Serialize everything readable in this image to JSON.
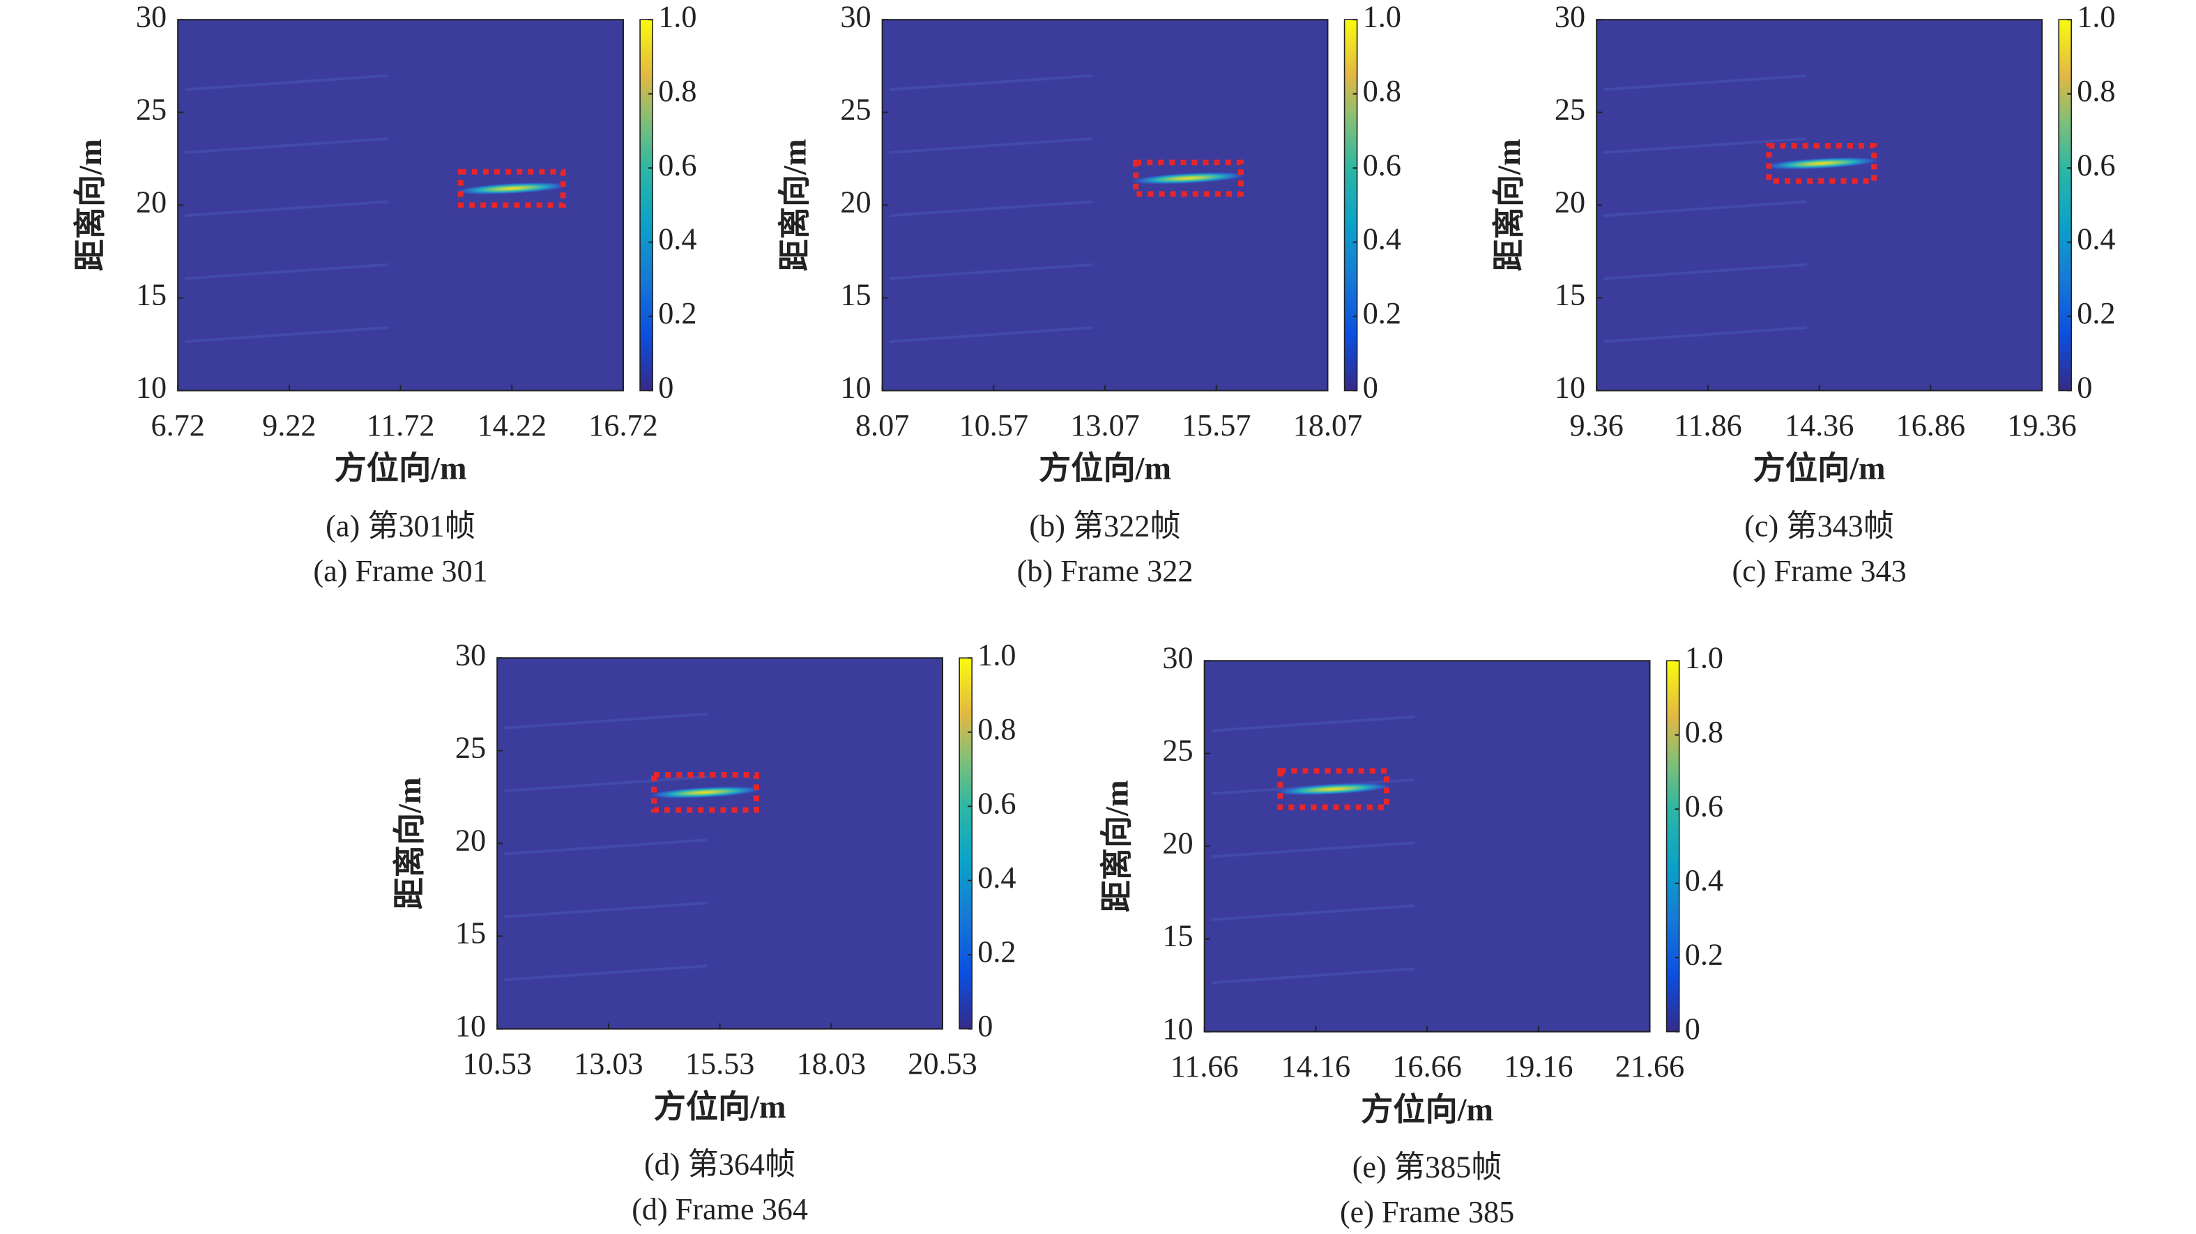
{
  "chart_data": [
    {
      "type": "heatmap",
      "caption_cn": "(a) 第301帧",
      "caption_en": "(a) Frame 301",
      "x_label": "方位向/m",
      "y_label": "距离向/m",
      "xlim": [
        6.72,
        16.72
      ],
      "xticks": [
        6.72,
        9.22,
        11.72,
        14.22,
        16.72
      ],
      "ylim": [
        10,
        30
      ],
      "yticks": [
        10,
        15,
        20,
        25,
        30
      ],
      "colorbar": {
        "lim": [
          0,
          1
        ],
        "ticks": [
          0,
          0.2,
          0.4,
          0.6,
          0.8,
          {
            "value": 1,
            "label": "1.0"
          }
        ]
      },
      "target": {
        "x": [
          13.07,
          15.37
        ],
        "y": [
          20.0,
          21.8
        ]
      },
      "target_color": "#e8262a"
    },
    {
      "type": "heatmap",
      "caption_cn": "(b) 第322帧",
      "caption_en": "(b) Frame 322",
      "x_label": "方位向/m",
      "y_label": "距离向/m",
      "xlim": [
        8.07,
        18.07
      ],
      "xticks": [
        8.07,
        10.57,
        13.07,
        15.57,
        18.07
      ],
      "ylim": [
        10,
        30
      ],
      "yticks": [
        10,
        15,
        20,
        25,
        30
      ],
      "colorbar": {
        "lim": [
          0,
          1
        ],
        "ticks": [
          0,
          0.2,
          0.4,
          0.6,
          0.8,
          {
            "value": 1,
            "label": "1.0"
          }
        ]
      },
      "target": {
        "x": [
          13.76,
          16.12
        ],
        "y": [
          20.6,
          22.3
        ]
      },
      "target_color": "#e8262a"
    },
    {
      "type": "heatmap",
      "caption_cn": "(c) 第343帧",
      "caption_en": "(c) Frame 343",
      "x_label": "方位向/m",
      "y_label": "距离向/m",
      "xlim": [
        9.36,
        19.36
      ],
      "xticks": [
        9.36,
        11.86,
        14.36,
        16.86,
        19.36
      ],
      "ylim": [
        10,
        30
      ],
      "yticks": [
        10,
        15,
        20,
        25,
        30
      ],
      "colorbar": {
        "lim": [
          0,
          1
        ],
        "ticks": [
          0,
          0.2,
          0.4,
          0.6,
          0.8,
          {
            "value": 1,
            "label": "1.0"
          }
        ]
      },
      "target": {
        "x": [
          13.23,
          15.59
        ],
        "y": [
          21.3,
          23.2
        ]
      },
      "target_color": "#e8262a"
    },
    {
      "type": "heatmap",
      "caption_cn": "(d) 第364帧",
      "caption_en": "(d) Frame 364",
      "x_label": "方位向/m",
      "y_label": "距离向/m",
      "xlim": [
        10.53,
        20.53
      ],
      "xticks": [
        10.53,
        13.03,
        15.53,
        18.03,
        20.53
      ],
      "ylim": [
        10,
        30
      ],
      "yticks": [
        10,
        15,
        20,
        25,
        30
      ],
      "colorbar": {
        "lim": [
          0,
          1
        ],
        "ticks": [
          0,
          0.2,
          0.4,
          0.6,
          0.8,
          {
            "value": 1,
            "label": "1.0"
          }
        ]
      },
      "target": {
        "x": [
          14.05,
          16.35
        ],
        "y": [
          21.8,
          23.7
        ]
      },
      "target_color": "#e8262a"
    },
    {
      "type": "heatmap",
      "caption_cn": "(e) 第385帧",
      "caption_en": "(e) Frame 385",
      "x_label": "方位向/m",
      "y_label": "距离向/m",
      "xlim": [
        11.66,
        21.66
      ],
      "xticks": [
        11.66,
        14.16,
        16.66,
        19.16,
        21.66
      ],
      "ylim": [
        10,
        30
      ],
      "yticks": [
        10,
        15,
        20,
        25,
        30
      ],
      "colorbar": {
        "lim": [
          0,
          1
        ],
        "ticks": [
          0,
          0.2,
          0.4,
          0.6,
          0.8,
          {
            "value": 1,
            "label": "1.0"
          }
        ]
      },
      "target": {
        "x": [
          13.36,
          15.75
        ],
        "y": [
          22.1,
          24.06
        ]
      },
      "target_color": "#e8262a"
    }
  ]
}
